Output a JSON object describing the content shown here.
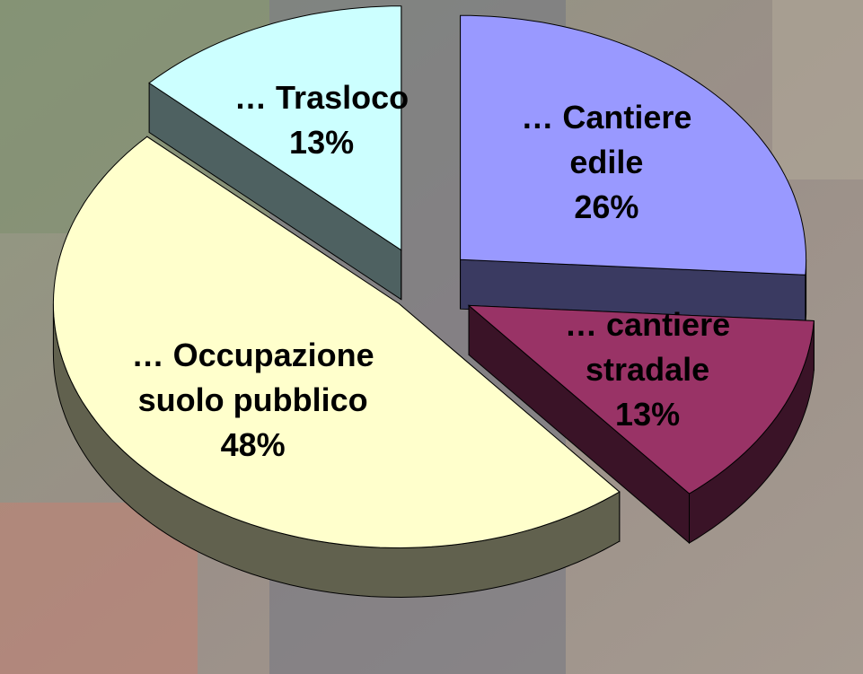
{
  "chart_data": {
    "type": "pie",
    "categories": [
      "… Cantiere edile",
      "… cantiere stradale",
      "… Occupazione suolo pubblico",
      "… Trasloco"
    ],
    "values": [
      26,
      13,
      48,
      13
    ],
    "value_labels": [
      "26%",
      "13%",
      "48%",
      "13%"
    ],
    "colors": [
      "#9999ff",
      "#993366",
      "#ffffcc",
      "#ccffff"
    ]
  }
}
